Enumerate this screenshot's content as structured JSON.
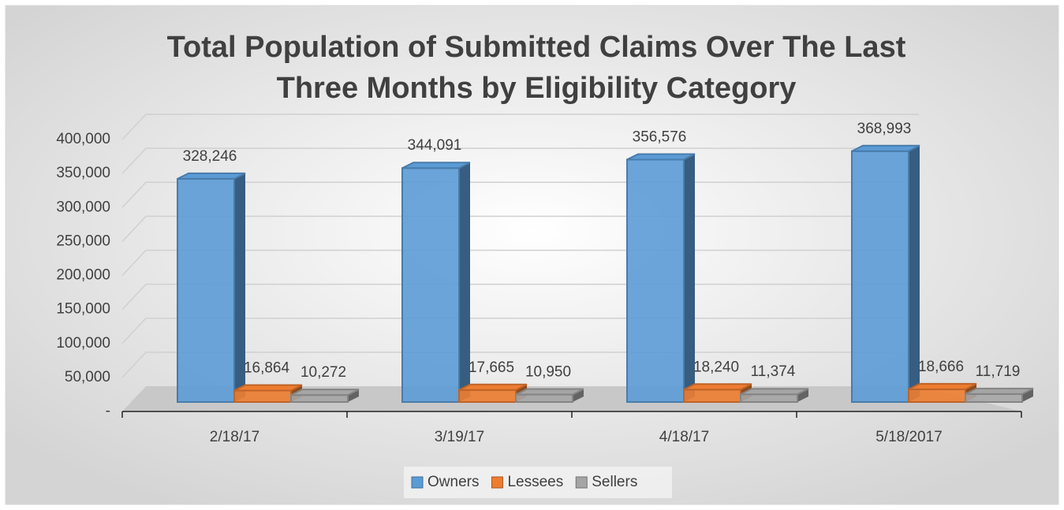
{
  "chart_data": {
    "type": "bar3d",
    "title": "Total Population of Submitted Claims Over The Last Three Months by Eligibility Category",
    "categories": [
      "2/18/17",
      "3/19/17",
      "4/18/17",
      "5/18/2017"
    ],
    "series": [
      {
        "name": "Owners",
        "color": "#5b9bd5",
        "values": [
          328246,
          344091,
          356576,
          368993
        ],
        "value_labels": [
          "328,246",
          "344,091",
          "356,576",
          "368,993"
        ]
      },
      {
        "name": "Lessees",
        "color": "#ed7d31",
        "values": [
          16864,
          17665,
          18240,
          18666
        ],
        "value_labels": [
          "16,864",
          "17,665",
          "18,240",
          "18,666"
        ]
      },
      {
        "name": "Sellers",
        "color": "#a5a5a5",
        "values": [
          10272,
          10950,
          11374,
          11719
        ],
        "value_labels": [
          "10,272",
          "10,950",
          "11,374",
          "11,719"
        ]
      }
    ],
    "ylim": [
      0,
      400000
    ],
    "yticks": [
      {
        "value": 0,
        "label": "-"
      },
      {
        "value": 50000,
        "label": "50,000"
      },
      {
        "value": 100000,
        "label": "100,000"
      },
      {
        "value": 150000,
        "label": "150,000"
      },
      {
        "value": 200000,
        "label": "200,000"
      },
      {
        "value": 250000,
        "label": "250,000"
      },
      {
        "value": 300000,
        "label": "300,000"
      },
      {
        "value": 350000,
        "label": "350,000"
      },
      {
        "value": 400000,
        "label": "400,000"
      }
    ],
    "grid": true,
    "legend": "bottom"
  }
}
